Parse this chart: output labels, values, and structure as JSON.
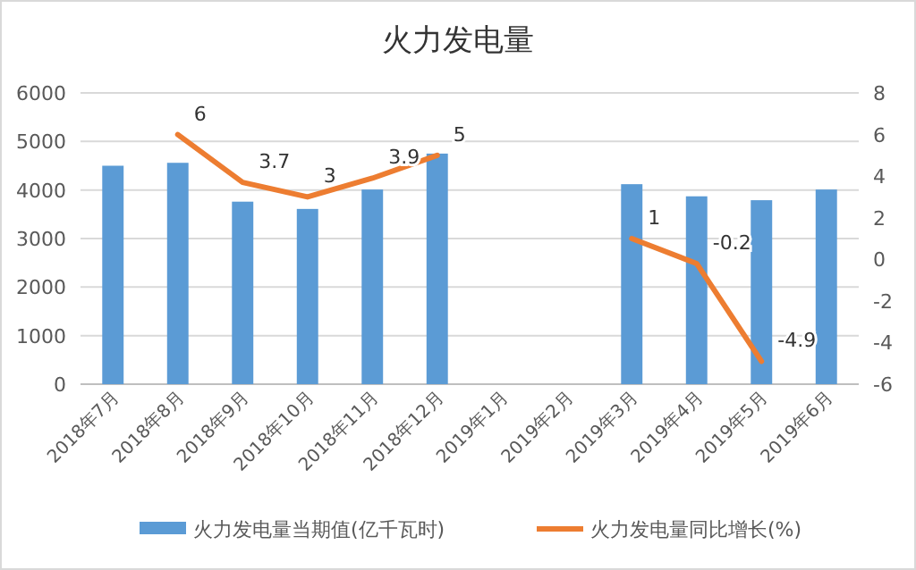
{
  "chart_data": {
    "type": "bar",
    "title": "火力发电量",
    "categories": [
      "2018年7月",
      "2018年8月",
      "2018年9月",
      "2018年10月",
      "2018年11月",
      "2018年12月",
      "2019年1月",
      "2019年2月",
      "2019年3月",
      "2019年4月",
      "2019年5月",
      "2019年6月"
    ],
    "series": [
      {
        "name": "火力发电量当期值(亿千瓦时)",
        "color": "#5b9bd5",
        "values": [
          4500,
          4560,
          3760,
          3610,
          4010,
          4750,
          null,
          null,
          4120,
          3870,
          3790,
          4010
        ]
      },
      {
        "name": "火力发电量同比增长(%)",
        "type": "line",
        "axis": "y2",
        "color": "#ed7d31",
        "values": [
          null,
          6,
          3.7,
          3,
          3.9,
          5,
          null,
          null,
          1,
          -0.2,
          -4.9,
          null
        ],
        "value_labels": [
          null,
          "6",
          "3.7",
          "3",
          "3.9",
          "5",
          null,
          null,
          "1",
          "-0.2",
          "-4.9",
          null
        ]
      }
    ],
    "ylim": [
      0,
      6000
    ],
    "yticks": [
      0,
      1000,
      2000,
      3000,
      4000,
      5000,
      6000
    ],
    "y2lim": [
      -6,
      8
    ],
    "y2ticks": [
      -6,
      -4,
      -2,
      0,
      2,
      4,
      6,
      8
    ],
    "grid": "y",
    "legend": "bottom"
  }
}
